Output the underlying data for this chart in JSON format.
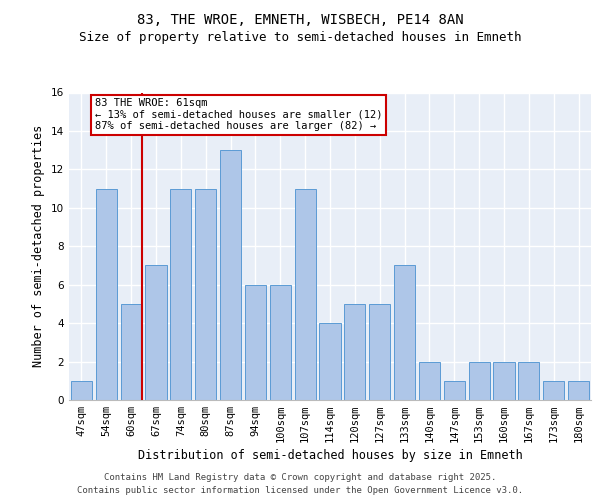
{
  "title": "83, THE WROE, EMNETH, WISBECH, PE14 8AN",
  "subtitle": "Size of property relative to semi-detached houses in Emneth",
  "xlabel": "Distribution of semi-detached houses by size in Emneth",
  "ylabel": "Number of semi-detached properties",
  "categories": [
    "47sqm",
    "54sqm",
    "60sqm",
    "67sqm",
    "74sqm",
    "80sqm",
    "87sqm",
    "94sqm",
    "100sqm",
    "107sqm",
    "114sqm",
    "120sqm",
    "127sqm",
    "133sqm",
    "140sqm",
    "147sqm",
    "153sqm",
    "160sqm",
    "167sqm",
    "173sqm",
    "180sqm"
  ],
  "values": [
    1,
    11,
    5,
    7,
    11,
    11,
    13,
    6,
    6,
    11,
    4,
    5,
    5,
    7,
    2,
    1,
    2,
    2,
    2,
    1,
    1
  ],
  "bar_color": "#aec6e8",
  "bar_edge_color": "#5b9bd5",
  "background_color": "#e8eef7",
  "grid_color": "#ffffff",
  "vline_color": "#cc0000",
  "vline_bar_index": 2,
  "annotation_text": "83 THE WROE: 61sqm\n← 13% of semi-detached houses are smaller (12)\n87% of semi-detached houses are larger (82) →",
  "annotation_box_color": "#ffffff",
  "annotation_box_edge_color": "#cc0000",
  "ylim": [
    0,
    16
  ],
  "yticks": [
    0,
    2,
    4,
    6,
    8,
    10,
    12,
    14,
    16
  ],
  "footer_line1": "Contains HM Land Registry data © Crown copyright and database right 2025.",
  "footer_line2": "Contains public sector information licensed under the Open Government Licence v3.0.",
  "title_fontsize": 10,
  "subtitle_fontsize": 9,
  "axis_label_fontsize": 8.5,
  "tick_fontsize": 7.5,
  "annotation_fontsize": 7.5,
  "footer_fontsize": 6.5
}
